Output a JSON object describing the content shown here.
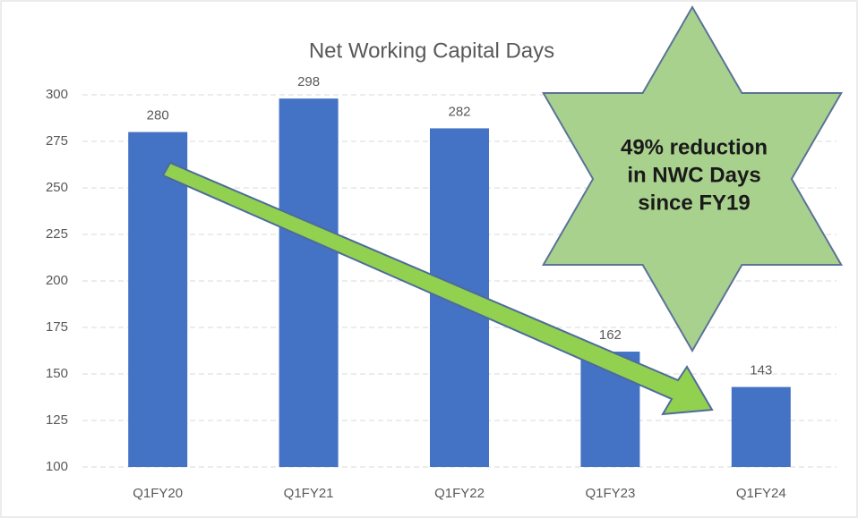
{
  "chart_data": {
    "type": "bar",
    "title": "Net Working Capital Days",
    "categories": [
      "Q1FY20",
      "Q1FY21",
      "Q1FY22",
      "Q1FY23",
      "Q1FY24"
    ],
    "values": [
      280,
      298,
      282,
      162,
      143
    ],
    "color": "#4472c4",
    "ylim": [
      100,
      300
    ],
    "yticks": [
      100,
      125,
      150,
      175,
      200,
      225,
      250,
      275,
      300
    ],
    "grid": true,
    "annotation": [
      "49% reduction",
      "in NWC Days",
      "since FY19"
    ]
  }
}
